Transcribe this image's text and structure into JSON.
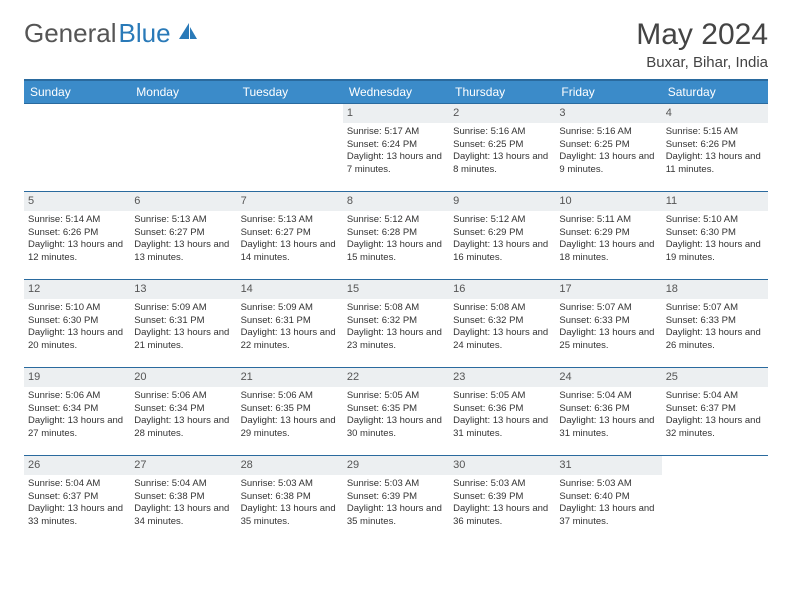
{
  "logo": {
    "part1": "General",
    "part2": "Blue"
  },
  "title": "May 2024",
  "location": "Buxar, Bihar, India",
  "colors": {
    "header_bg": "#3b8bc9",
    "header_border": "#2a6a9e",
    "daynum_bg": "#eceff1",
    "text": "#333333",
    "logo_blue": "#2a7ab8"
  },
  "day_names": [
    "Sunday",
    "Monday",
    "Tuesday",
    "Wednesday",
    "Thursday",
    "Friday",
    "Saturday"
  ],
  "weeks": [
    [
      {
        "n": "",
        "empty": true
      },
      {
        "n": "",
        "empty": true
      },
      {
        "n": "",
        "empty": true
      },
      {
        "n": "1",
        "sr": "Sunrise: 5:17 AM",
        "ss": "Sunset: 6:24 PM",
        "dl": "Daylight: 13 hours and 7 minutes."
      },
      {
        "n": "2",
        "sr": "Sunrise: 5:16 AM",
        "ss": "Sunset: 6:25 PM",
        "dl": "Daylight: 13 hours and 8 minutes."
      },
      {
        "n": "3",
        "sr": "Sunrise: 5:16 AM",
        "ss": "Sunset: 6:25 PM",
        "dl": "Daylight: 13 hours and 9 minutes."
      },
      {
        "n": "4",
        "sr": "Sunrise: 5:15 AM",
        "ss": "Sunset: 6:26 PM",
        "dl": "Daylight: 13 hours and 11 minutes."
      }
    ],
    [
      {
        "n": "5",
        "sr": "Sunrise: 5:14 AM",
        "ss": "Sunset: 6:26 PM",
        "dl": "Daylight: 13 hours and 12 minutes."
      },
      {
        "n": "6",
        "sr": "Sunrise: 5:13 AM",
        "ss": "Sunset: 6:27 PM",
        "dl": "Daylight: 13 hours and 13 minutes."
      },
      {
        "n": "7",
        "sr": "Sunrise: 5:13 AM",
        "ss": "Sunset: 6:27 PM",
        "dl": "Daylight: 13 hours and 14 minutes."
      },
      {
        "n": "8",
        "sr": "Sunrise: 5:12 AM",
        "ss": "Sunset: 6:28 PM",
        "dl": "Daylight: 13 hours and 15 minutes."
      },
      {
        "n": "9",
        "sr": "Sunrise: 5:12 AM",
        "ss": "Sunset: 6:29 PM",
        "dl": "Daylight: 13 hours and 16 minutes."
      },
      {
        "n": "10",
        "sr": "Sunrise: 5:11 AM",
        "ss": "Sunset: 6:29 PM",
        "dl": "Daylight: 13 hours and 18 minutes."
      },
      {
        "n": "11",
        "sr": "Sunrise: 5:10 AM",
        "ss": "Sunset: 6:30 PM",
        "dl": "Daylight: 13 hours and 19 minutes."
      }
    ],
    [
      {
        "n": "12",
        "sr": "Sunrise: 5:10 AM",
        "ss": "Sunset: 6:30 PM",
        "dl": "Daylight: 13 hours and 20 minutes."
      },
      {
        "n": "13",
        "sr": "Sunrise: 5:09 AM",
        "ss": "Sunset: 6:31 PM",
        "dl": "Daylight: 13 hours and 21 minutes."
      },
      {
        "n": "14",
        "sr": "Sunrise: 5:09 AM",
        "ss": "Sunset: 6:31 PM",
        "dl": "Daylight: 13 hours and 22 minutes."
      },
      {
        "n": "15",
        "sr": "Sunrise: 5:08 AM",
        "ss": "Sunset: 6:32 PM",
        "dl": "Daylight: 13 hours and 23 minutes."
      },
      {
        "n": "16",
        "sr": "Sunrise: 5:08 AM",
        "ss": "Sunset: 6:32 PM",
        "dl": "Daylight: 13 hours and 24 minutes."
      },
      {
        "n": "17",
        "sr": "Sunrise: 5:07 AM",
        "ss": "Sunset: 6:33 PM",
        "dl": "Daylight: 13 hours and 25 minutes."
      },
      {
        "n": "18",
        "sr": "Sunrise: 5:07 AM",
        "ss": "Sunset: 6:33 PM",
        "dl": "Daylight: 13 hours and 26 minutes."
      }
    ],
    [
      {
        "n": "19",
        "sr": "Sunrise: 5:06 AM",
        "ss": "Sunset: 6:34 PM",
        "dl": "Daylight: 13 hours and 27 minutes."
      },
      {
        "n": "20",
        "sr": "Sunrise: 5:06 AM",
        "ss": "Sunset: 6:34 PM",
        "dl": "Daylight: 13 hours and 28 minutes."
      },
      {
        "n": "21",
        "sr": "Sunrise: 5:06 AM",
        "ss": "Sunset: 6:35 PM",
        "dl": "Daylight: 13 hours and 29 minutes."
      },
      {
        "n": "22",
        "sr": "Sunrise: 5:05 AM",
        "ss": "Sunset: 6:35 PM",
        "dl": "Daylight: 13 hours and 30 minutes."
      },
      {
        "n": "23",
        "sr": "Sunrise: 5:05 AM",
        "ss": "Sunset: 6:36 PM",
        "dl": "Daylight: 13 hours and 31 minutes."
      },
      {
        "n": "24",
        "sr": "Sunrise: 5:04 AM",
        "ss": "Sunset: 6:36 PM",
        "dl": "Daylight: 13 hours and 31 minutes."
      },
      {
        "n": "25",
        "sr": "Sunrise: 5:04 AM",
        "ss": "Sunset: 6:37 PM",
        "dl": "Daylight: 13 hours and 32 minutes."
      }
    ],
    [
      {
        "n": "26",
        "sr": "Sunrise: 5:04 AM",
        "ss": "Sunset: 6:37 PM",
        "dl": "Daylight: 13 hours and 33 minutes."
      },
      {
        "n": "27",
        "sr": "Sunrise: 5:04 AM",
        "ss": "Sunset: 6:38 PM",
        "dl": "Daylight: 13 hours and 34 minutes."
      },
      {
        "n": "28",
        "sr": "Sunrise: 5:03 AM",
        "ss": "Sunset: 6:38 PM",
        "dl": "Daylight: 13 hours and 35 minutes."
      },
      {
        "n": "29",
        "sr": "Sunrise: 5:03 AM",
        "ss": "Sunset: 6:39 PM",
        "dl": "Daylight: 13 hours and 35 minutes."
      },
      {
        "n": "30",
        "sr": "Sunrise: 5:03 AM",
        "ss": "Sunset: 6:39 PM",
        "dl": "Daylight: 13 hours and 36 minutes."
      },
      {
        "n": "31",
        "sr": "Sunrise: 5:03 AM",
        "ss": "Sunset: 6:40 PM",
        "dl": "Daylight: 13 hours and 37 minutes."
      },
      {
        "n": "",
        "empty": true
      }
    ]
  ]
}
